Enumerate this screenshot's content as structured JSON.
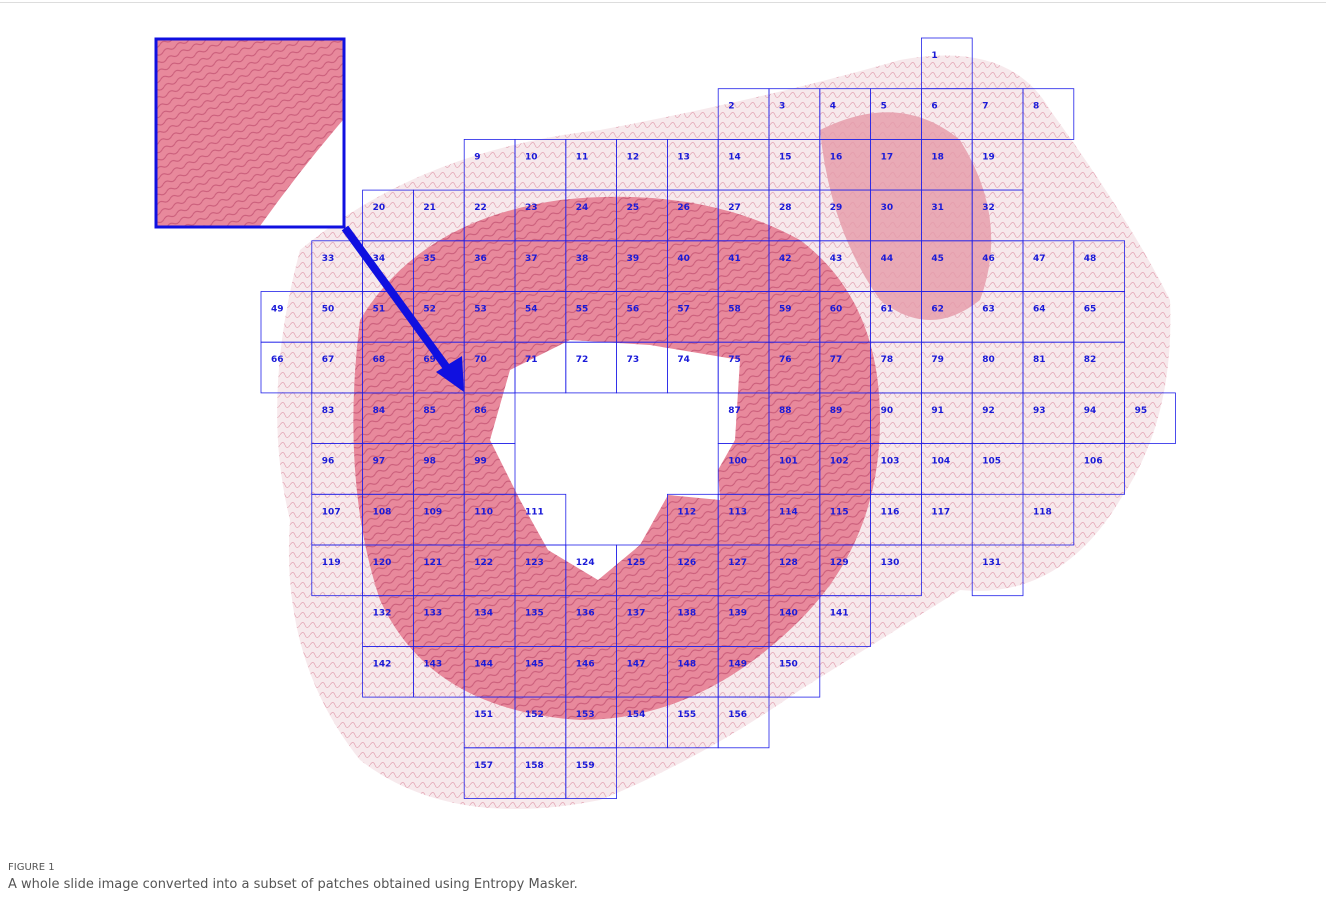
{
  "figure": {
    "patches": [
      [
        1
      ],
      [
        2,
        3,
        4,
        5,
        6,
        7,
        8
      ],
      [
        9,
        10,
        11,
        12,
        13,
        14,
        15,
        16,
        17,
        18,
        19
      ],
      [
        20,
        21,
        22,
        23,
        24,
        25,
        26,
        27,
        28,
        29,
        30,
        31,
        32
      ],
      [
        33,
        34,
        35,
        36,
        37,
        38,
        39,
        40,
        41,
        42,
        43,
        44,
        45,
        46,
        47,
        48
      ],
      [
        49,
        50,
        51,
        52,
        53,
        54,
        55,
        56,
        57,
        58,
        59,
        60,
        61,
        62,
        63,
        64,
        65
      ],
      [
        66,
        67,
        68,
        69,
        70,
        71,
        72,
        73,
        74,
        75,
        76,
        77,
        78,
        79,
        80,
        81,
        82
      ],
      [
        83,
        84,
        85,
        86,
        87,
        88,
        89,
        90,
        91,
        92,
        93,
        94,
        95
      ],
      [
        96,
        97,
        98,
        99,
        100,
        101,
        102,
        103,
        104,
        105,
        106
      ],
      [
        107,
        108,
        109,
        110,
        111,
        112,
        113,
        114,
        115,
        116,
        117,
        118
      ],
      [
        119,
        120,
        121,
        122,
        123,
        124,
        125,
        126,
        127,
        128,
        129,
        130,
        131
      ],
      [
        132,
        133,
        134,
        135,
        136,
        137,
        138,
        139,
        140,
        141
      ],
      [
        142,
        143,
        144,
        145,
        146,
        147,
        148,
        149,
        150
      ],
      [
        151,
        152,
        153,
        154,
        155,
        156
      ],
      [
        157,
        158,
        159
      ]
    ],
    "label": "FIGURE 1",
    "caption": "A whole slide image converted into a subset of patches obtained using Entropy Masker."
  }
}
